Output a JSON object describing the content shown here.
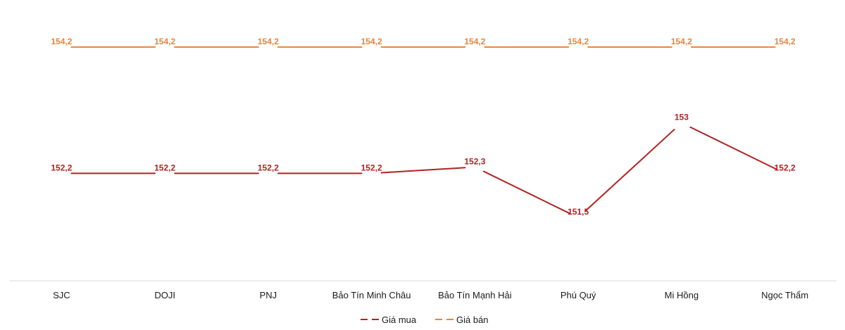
{
  "chart_data": {
    "type": "line",
    "categories": [
      "SJC",
      "DOJI",
      "PNJ",
      "Bảo Tín Minh Châu",
      "Bảo Tín Mạnh Hải",
      "Phú Quý",
      "Mi Hồng",
      "Ngọc Thẩm"
    ],
    "series": [
      {
        "name": "Giá mua",
        "color": "#b22222",
        "values": [
          152.2,
          152.2,
          152.2,
          152.2,
          152.3,
          151.5,
          153,
          152.2
        ],
        "labels": [
          "152,2",
          "152,2",
          "152,2",
          "152,2",
          "152,3",
          "151,5",
          "153",
          "152,2"
        ]
      },
      {
        "name": "Giá bán",
        "color": "#e8843c",
        "values": [
          154.2,
          154.2,
          154.2,
          154.2,
          154.2,
          154.2,
          154.2,
          154.2
        ],
        "labels": [
          "154,2",
          "154,2",
          "154,2",
          "154,2",
          "154,2",
          "154,2",
          "154,2",
          "154,2"
        ]
      }
    ],
    "title": "",
    "xlabel": "",
    "ylabel": "",
    "ylim": [
      150.5,
      154.7
    ],
    "grid": false,
    "legend": "bottom-center"
  }
}
